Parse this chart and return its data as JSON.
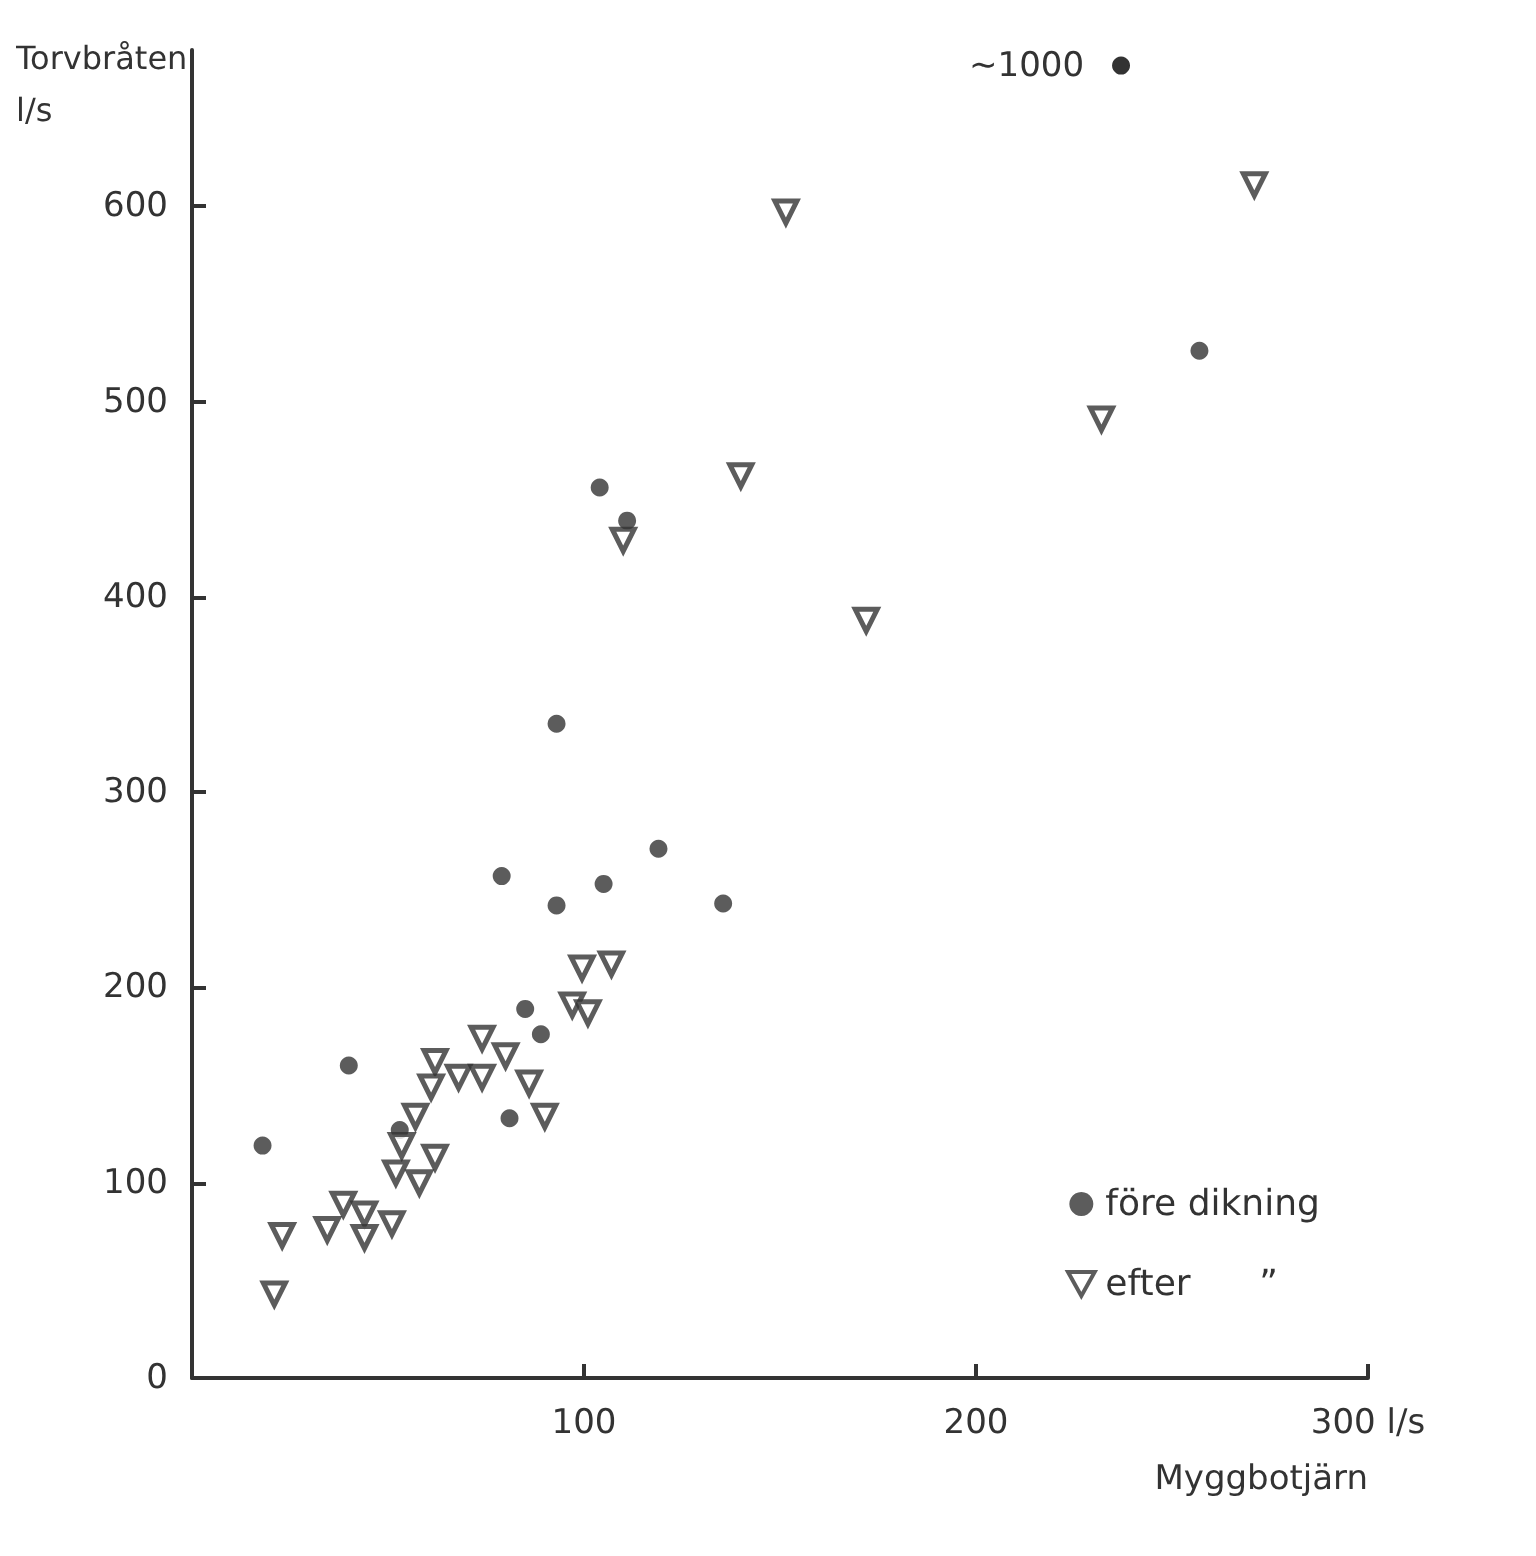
{
  "chart_data": {
    "type": "scatter",
    "ylabel": "Torvbråten\nl/s",
    "xlabel": "Myggbotjärn",
    "xlim": [
      0,
      300
    ],
    "ylim": [
      0,
      680
    ],
    "xticks": [
      100,
      200,
      {
        "value": 300,
        "label": "300 l/s"
      }
    ],
    "yticks": [
      0,
      100,
      200,
      300,
      400,
      500,
      600
    ],
    "grid": false,
    "legend": "bottom right",
    "annotations": [
      {
        "text": "~1000",
        "x": 237,
        "y": 672
      }
    ],
    "series": [
      {
        "name": "före dikning",
        "color": "#333333",
        "marker": "circle",
        "x": [
          18,
          40,
          85,
          89,
          81,
          53,
          93,
          79,
          93,
          105,
          119,
          135.5,
          104,
          111,
          257
        ],
        "values": [
          119,
          160,
          189,
          176,
          133,
          127,
          335,
          257,
          242,
          253,
          271,
          243,
          456,
          439,
          526
        ]
      },
      {
        "name": "efter      ”",
        "color": "#333333",
        "marker": "triangle",
        "x": [
          107,
          99.5,
          97,
          101,
          74,
          80,
          62,
          68,
          74,
          61,
          86,
          90,
          57,
          53.5,
          52,
          62,
          58,
          38.6,
          44,
          34.5,
          44,
          51,
          23,
          21,
          110,
          151.5,
          271,
          232,
          140,
          172
        ],
        "values": [
          212,
          210,
          191,
          187,
          174,
          165,
          162,
          154,
          154,
          149,
          151,
          134,
          134,
          119,
          105,
          113,
          100,
          89,
          84,
          76,
          72,
          79,
          73,
          43,
          429,
          597,
          611,
          491,
          462,
          388
        ]
      }
    ]
  }
}
